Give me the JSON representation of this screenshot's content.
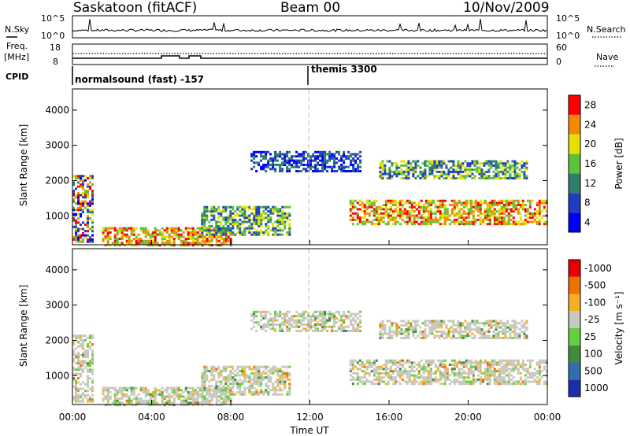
{
  "header": {
    "title": "Saskatoon (fitACF)",
    "beam": "Beam 00",
    "date": "10/Nov/2009"
  },
  "top_panels": {
    "nsky_label": "N.Sky",
    "nsky_ticks": [
      "10^5",
      "10^0"
    ],
    "nsearch_label": "N.Search",
    "nsearch_ticks": [
      "10^5",
      "10^0"
    ],
    "freq_label": "Freq.",
    "freq_unit": "[MHz]",
    "freq_ticks": [
      "18",
      "8"
    ],
    "nave_label": "Nave",
    "nave_ticks": [
      "60",
      "0"
    ],
    "cpid_label": "CPID",
    "cpid_modes": [
      "normalsound (fast) -157",
      "themis 3300"
    ]
  },
  "chart_data": [
    {
      "type": "heatmap",
      "name": "power",
      "ylabel": "Slant Range [km]",
      "yticks": [
        "1000",
        "2000",
        "3000",
        "4000"
      ],
      "ylim": [
        180,
        4600
      ],
      "xlim": [
        0,
        24
      ],
      "colorbar": {
        "label": "Power [dB]",
        "ticks": [
          "4",
          "8",
          "12",
          "16",
          "20",
          "24",
          "28"
        ],
        "colors": [
          "#0000ff",
          "#1f3dbe",
          "#2f7f6a",
          "#5cc23a",
          "#e8e000",
          "#f28a00",
          "#ff0000"
        ]
      },
      "echo_regions": [
        {
          "t0": 0.0,
          "t1": 1.0,
          "r0": 300,
          "r1": 2200,
          "level": "mixed"
        },
        {
          "t0": 1.5,
          "t1": 8.0,
          "r0": 200,
          "r1": 700,
          "level": "strong"
        },
        {
          "t0": 6.5,
          "t1": 11.0,
          "r0": 500,
          "r1": 1300,
          "level": "moderate"
        },
        {
          "t0": 9.0,
          "t1": 14.5,
          "r0": 2300,
          "r1": 2900,
          "level": "weak"
        },
        {
          "t0": 14.0,
          "t1": 24.0,
          "r0": 800,
          "r1": 1500,
          "level": "strong"
        },
        {
          "t0": 15.5,
          "t1": 23.0,
          "r0": 2100,
          "r1": 2600,
          "level": "moderate"
        }
      ]
    },
    {
      "type": "heatmap",
      "name": "velocity",
      "ylabel": "Slant Range [km]",
      "yticks": [
        "1000",
        "2000",
        "3000",
        "4000"
      ],
      "ylim": [
        180,
        4600
      ],
      "xlim": [
        0,
        24
      ],
      "xlabel": "Time UT",
      "xticks": [
        "00:00",
        "04:00",
        "08:00",
        "12:00",
        "16:00",
        "20:00",
        "00:00"
      ],
      "colorbar": {
        "label": "Velocity [m s⁻¹]",
        "ticks": [
          "1000",
          "500",
          "100",
          "25",
          "-25",
          "-100",
          "-500",
          "-1000"
        ],
        "colors": [
          "#1d2fa8",
          "#2f6fb0",
          "#3f8c3a",
          "#64d040",
          "#c8c8c0",
          "#f5b020",
          "#f07000",
          "#e80000"
        ]
      }
    }
  ]
}
